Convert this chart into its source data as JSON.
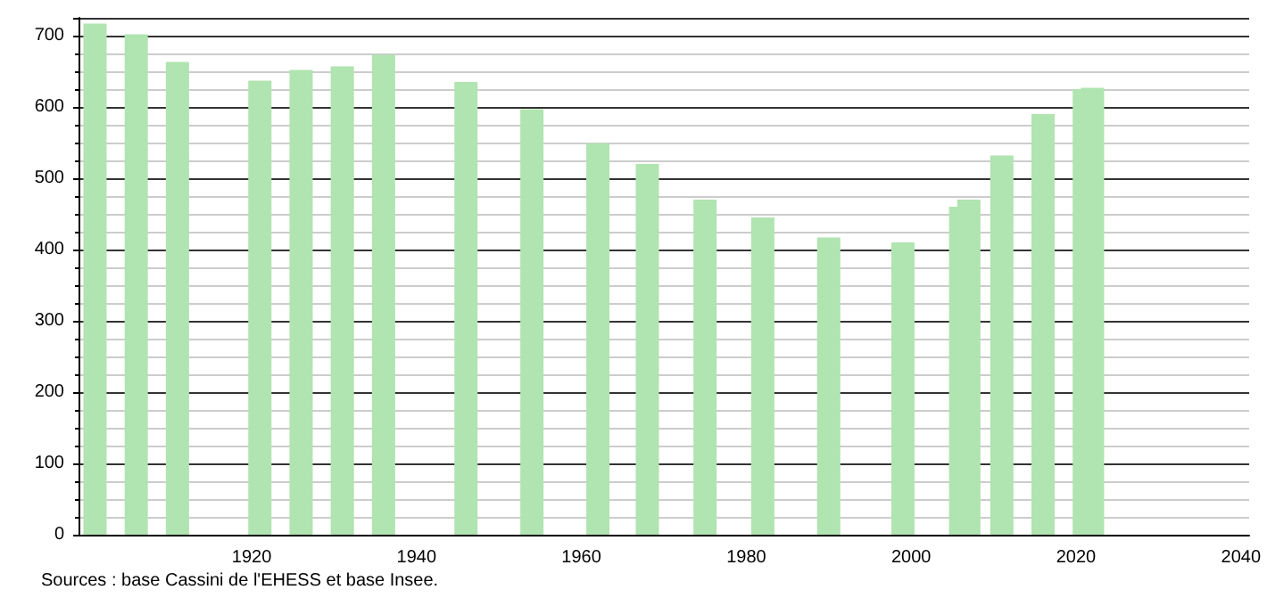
{
  "chart_data": {
    "type": "bar",
    "x": [
      1901,
      1906,
      1911,
      1921,
      1926,
      1931,
      1936,
      1946,
      1954,
      1962,
      1968,
      1975,
      1982,
      1990,
      1999,
      2006,
      2007,
      2011,
      2016,
      2021,
      2022
    ],
    "values": [
      717,
      702,
      663,
      637,
      652,
      657,
      673,
      635,
      597,
      549,
      520,
      470,
      445,
      417,
      410,
      460,
      470,
      532,
      590,
      625,
      627
    ],
    "color": "#b0e4b0",
    "xlim": [
      1899,
      2041
    ],
    "xticks": [
      1920,
      1940,
      1960,
      1980,
      2000,
      2020,
      2040
    ],
    "ylim": [
      0,
      725
    ],
    "yticks": [
      0,
      100,
      200,
      300,
      400,
      500,
      600,
      700
    ],
    "grid": "y",
    "annotations": [
      "Sources : base Cassini de l'EHESS et base Insee."
    ]
  }
}
